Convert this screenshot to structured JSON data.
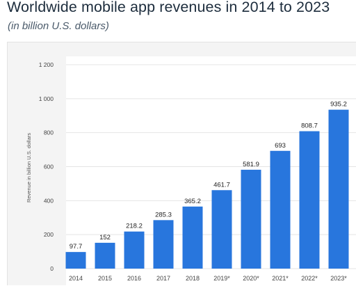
{
  "header": {
    "title": "Worldwide mobile app revenues in 2014 to 2023",
    "subtitle": "(in billion U.S. dollars)"
  },
  "chart_data": {
    "type": "bar",
    "categories": [
      "2014",
      "2015",
      "2016",
      "2017",
      "2018",
      "2019*",
      "2020*",
      "2021*",
      "2022*",
      "2023*"
    ],
    "values": [
      97.7,
      152,
      218.2,
      285.3,
      365.2,
      461.7,
      581.9,
      693,
      808.7,
      935.2
    ],
    "value_labels": [
      "97.7",
      "152",
      "218.2",
      "285.3",
      "365.2",
      "461.7",
      "581.9",
      "693",
      "808.7",
      "935.2"
    ],
    "ylabel": "Revenue in billion U.S. dollars",
    "ylim": [
      0,
      1200
    ],
    "yticks": [
      0,
      200,
      400,
      600,
      800,
      1000,
      1200
    ],
    "ytick_labels": [
      "0",
      "200",
      "400",
      "600",
      "800",
      "1 000",
      "1 200"
    ],
    "bar_color": "#2876dd",
    "grid": true
  }
}
